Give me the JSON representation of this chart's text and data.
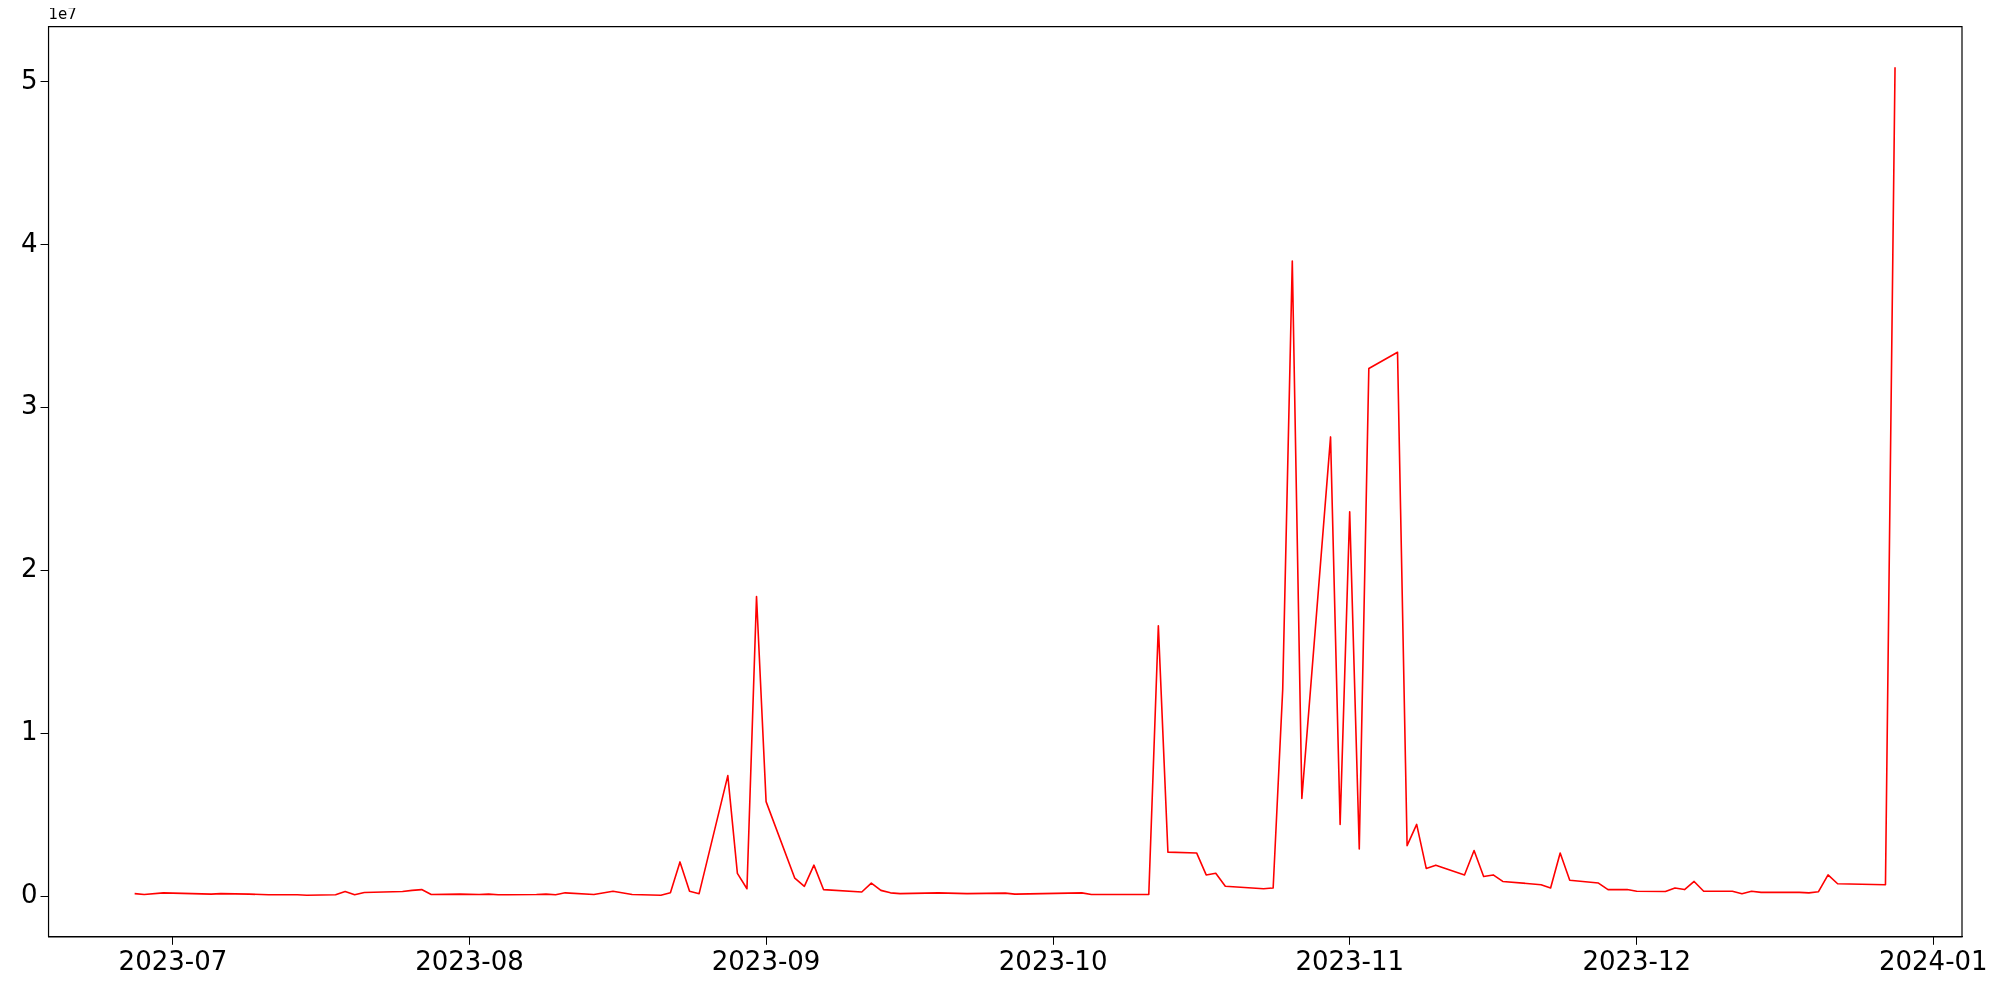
{
  "chart_data": {
    "type": "line",
    "annotations": [
      "1e7"
    ],
    "x": [
      "2023-06-27",
      "2023-06-28",
      "2023-06-30",
      "2023-07-05",
      "2023-07-06",
      "2023-07-09",
      "2023-07-11",
      "2023-07-14",
      "2023-07-15",
      "2023-07-18",
      "2023-07-19",
      "2023-07-20",
      "2023-07-21",
      "2023-07-25",
      "2023-07-26",
      "2023-07-27",
      "2023-07-28",
      "2023-07-31",
      "2023-08-02",
      "2023-08-03",
      "2023-08-04",
      "2023-08-08",
      "2023-08-09",
      "2023-08-10",
      "2023-08-11",
      "2023-08-14",
      "2023-08-16",
      "2023-08-18",
      "2023-08-21",
      "2023-08-22",
      "2023-08-23",
      "2023-08-24",
      "2023-08-25",
      "2023-08-28",
      "2023-08-29",
      "2023-08-30",
      "2023-08-31",
      "2023-09-01",
      "2023-09-04",
      "2023-09-05",
      "2023-09-06",
      "2023-09-07",
      "2023-09-11",
      "2023-09-12",
      "2023-09-13",
      "2023-09-14",
      "2023-09-15",
      "2023-09-19",
      "2023-09-22",
      "2023-09-26",
      "2023-09-27",
      "2023-10-04",
      "2023-10-05",
      "2023-10-11",
      "2023-10-12",
      "2023-10-13",
      "2023-10-16",
      "2023-10-17",
      "2023-10-18",
      "2023-10-19",
      "2023-10-23",
      "2023-10-24",
      "2023-10-25",
      "2023-10-26",
      "2023-10-27",
      "2023-10-30",
      "2023-10-31",
      "2023-11-01",
      "2023-11-02",
      "2023-11-03",
      "2023-11-06",
      "2023-11-07",
      "2023-11-08",
      "2023-11-09",
      "2023-11-10",
      "2023-11-13",
      "2023-11-14",
      "2023-11-15",
      "2023-11-16",
      "2023-11-17",
      "2023-11-21",
      "2023-11-22",
      "2023-11-23",
      "2023-11-24",
      "2023-11-27",
      "2023-11-28",
      "2023-11-29",
      "2023-11-30",
      "2023-12-01",
      "2023-12-04",
      "2023-12-05",
      "2023-12-06",
      "2023-12-07",
      "2023-12-08",
      "2023-12-11",
      "2023-12-12",
      "2023-12-13",
      "2023-12-14",
      "2023-12-18",
      "2023-12-19",
      "2023-12-20",
      "2023-12-21",
      "2023-12-22",
      "2023-12-27",
      "2023-12-28"
    ],
    "series": [
      {
        "color": "#ff0000",
        "values": [
          0.015,
          0.01,
          0.02,
          0.012,
          0.015,
          0.012,
          0.008,
          0.008,
          0.005,
          0.008,
          0.028,
          0.008,
          0.022,
          0.028,
          0.035,
          0.04,
          0.01,
          0.012,
          0.01,
          0.012,
          0.008,
          0.01,
          0.012,
          0.008,
          0.02,
          0.01,
          0.03,
          0.01,
          0.005,
          0.02,
          0.21,
          0.03,
          0.015,
          0.74,
          0.14,
          0.045,
          1.84,
          0.58,
          0.11,
          0.06,
          0.19,
          0.04,
          0.025,
          0.08,
          0.035,
          0.02,
          0.015,
          0.02,
          0.015,
          0.018,
          0.012,
          0.02,
          0.01,
          0.01,
          1.66,
          0.27,
          0.265,
          0.13,
          0.14,
          0.06,
          0.045,
          0.05,
          1.27,
          3.9,
          0.6,
          2.82,
          0.44,
          2.36,
          0.29,
          3.24,
          3.34,
          0.31,
          0.44,
          0.17,
          0.19,
          0.13,
          0.28,
          0.12,
          0.13,
          0.09,
          0.07,
          0.05,
          0.265,
          0.097,
          0.08,
          0.04,
          0.04,
          0.04,
          0.03,
          0.028,
          0.05,
          0.04,
          0.09,
          0.03,
          0.03,
          0.015,
          0.03,
          0.023,
          0.023,
          0.02,
          0.027,
          0.13,
          0.076,
          0.07,
          5.09
        ]
      }
    ],
    "xlim": [
      "2023-06-18",
      "2024-01-04"
    ],
    "xticks": [
      "2023-07",
      "2023-08",
      "2023-09",
      "2023-10",
      "2023-11",
      "2023-12",
      "2024-01"
    ],
    "ylim": [
      -0.25,
      5.34
    ],
    "yticks": [
      0,
      1,
      2,
      3,
      4,
      5
    ],
    "grid": false,
    "legend": false,
    "marker": "none",
    "line_style": "solid"
  }
}
